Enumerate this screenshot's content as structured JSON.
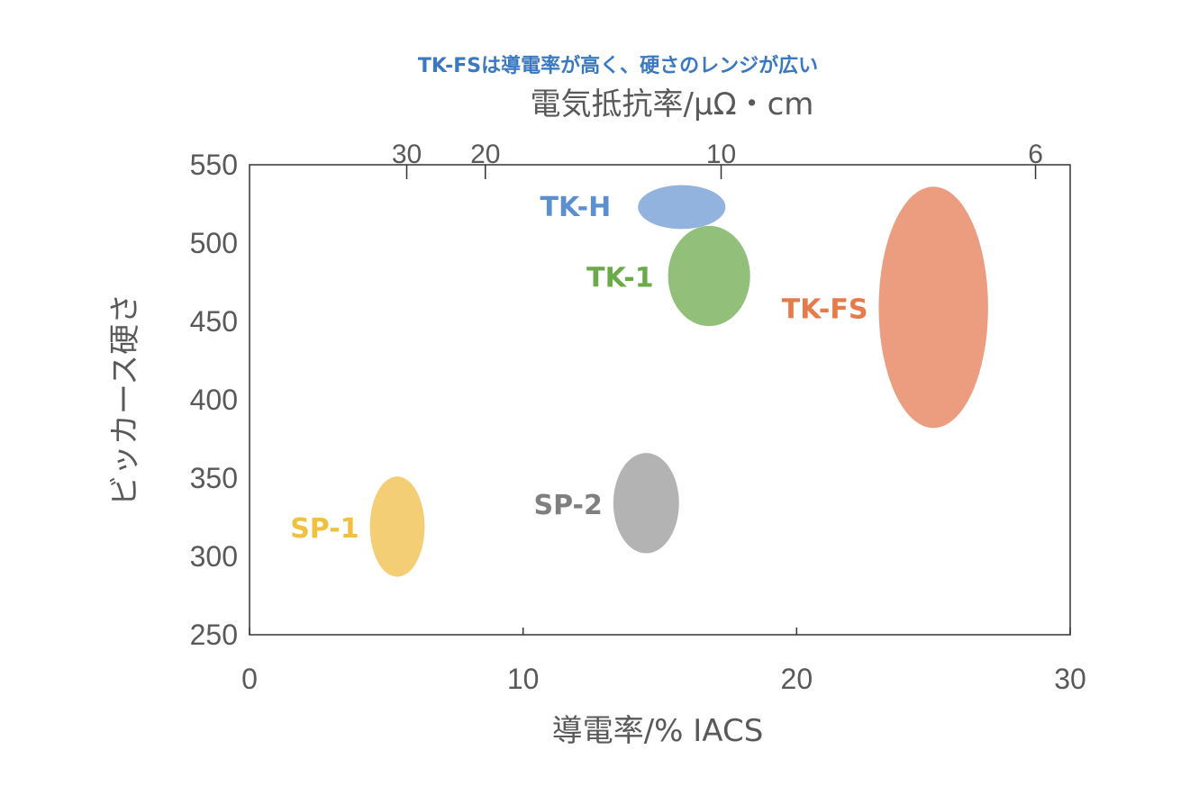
{
  "chart_data": {
    "type": "scatter",
    "subtitle": "TK-FSは導電率が高く、硬さのレンジが広い",
    "xlabel": "導電率/% IACS",
    "ylabel": "ビッカース硬さ",
    "top_axis_label": "電気抵抗率/μΩ・cm",
    "xlim": [
      0,
      30
    ],
    "ylim": [
      250,
      550
    ],
    "x_ticks": [
      0,
      10,
      20,
      30
    ],
    "y_ticks": [
      250,
      300,
      350,
      400,
      450,
      500,
      550
    ],
    "top_ticks": [
      30,
      20,
      10,
      6
    ],
    "grid": false,
    "regions": [
      {
        "name": "SP-1",
        "x_center": 5.4,
        "x_halfwidth": 1.0,
        "y_center": 319,
        "y_halfheight": 32,
        "color": "#f2c55c"
      },
      {
        "name": "SP-2",
        "x_center": 14.5,
        "x_halfwidth": 1.2,
        "y_center": 334,
        "y_halfheight": 32,
        "color": "#a6a6a6"
      },
      {
        "name": "TK-H",
        "x_center": 15.8,
        "x_halfwidth": 1.6,
        "y_center": 523,
        "y_halfheight": 14,
        "color": "#7fa6d8"
      },
      {
        "name": "TK-1",
        "x_center": 16.8,
        "x_halfwidth": 1.5,
        "y_center": 479,
        "y_halfheight": 32,
        "color": "#7fb462"
      },
      {
        "name": "TK-FS",
        "x_center": 25.0,
        "x_halfwidth": 2.0,
        "y_center": 459,
        "y_halfheight": 77,
        "color": "#e98c69"
      }
    ],
    "label_colors": {
      "SP-1": "#f0c040",
      "SP-2": "#7f7f7f",
      "TK-H": "#5b8fd0",
      "TK-1": "#6aaa48",
      "TK-FS": "#e67a4a",
      "subtitle": "#3a78c4"
    }
  }
}
